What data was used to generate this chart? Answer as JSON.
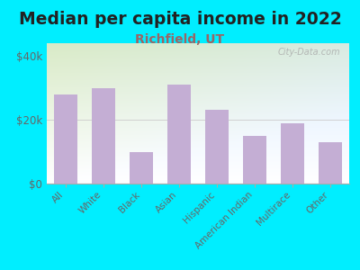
{
  "title": "Median per capita income in 2022",
  "subtitle": "Richfield, UT",
  "categories": [
    "All",
    "White",
    "Black",
    "Asian",
    "Hispanic",
    "American Indian",
    "Multirace",
    "Other"
  ],
  "values": [
    28000,
    30000,
    10000,
    31000,
    23000,
    15000,
    19000,
    13000
  ],
  "bar_color": "#c4aed4",
  "background_outer": "#00eeff",
  "background_inner_left": "#d8e8c0",
  "background_inner_right": "#f5f5f5",
  "background_inner_bottom": "#ffffff",
  "yticks": [
    0,
    20000,
    40000
  ],
  "ytick_labels": [
    "$0",
    "$20k",
    "$40k"
  ],
  "ylim": [
    0,
    44000
  ],
  "title_fontsize": 13.5,
  "subtitle_fontsize": 10,
  "watermark": "City-Data.com",
  "title_color": "#222222",
  "subtitle_color": "#996666",
  "tick_label_color": "#666666"
}
